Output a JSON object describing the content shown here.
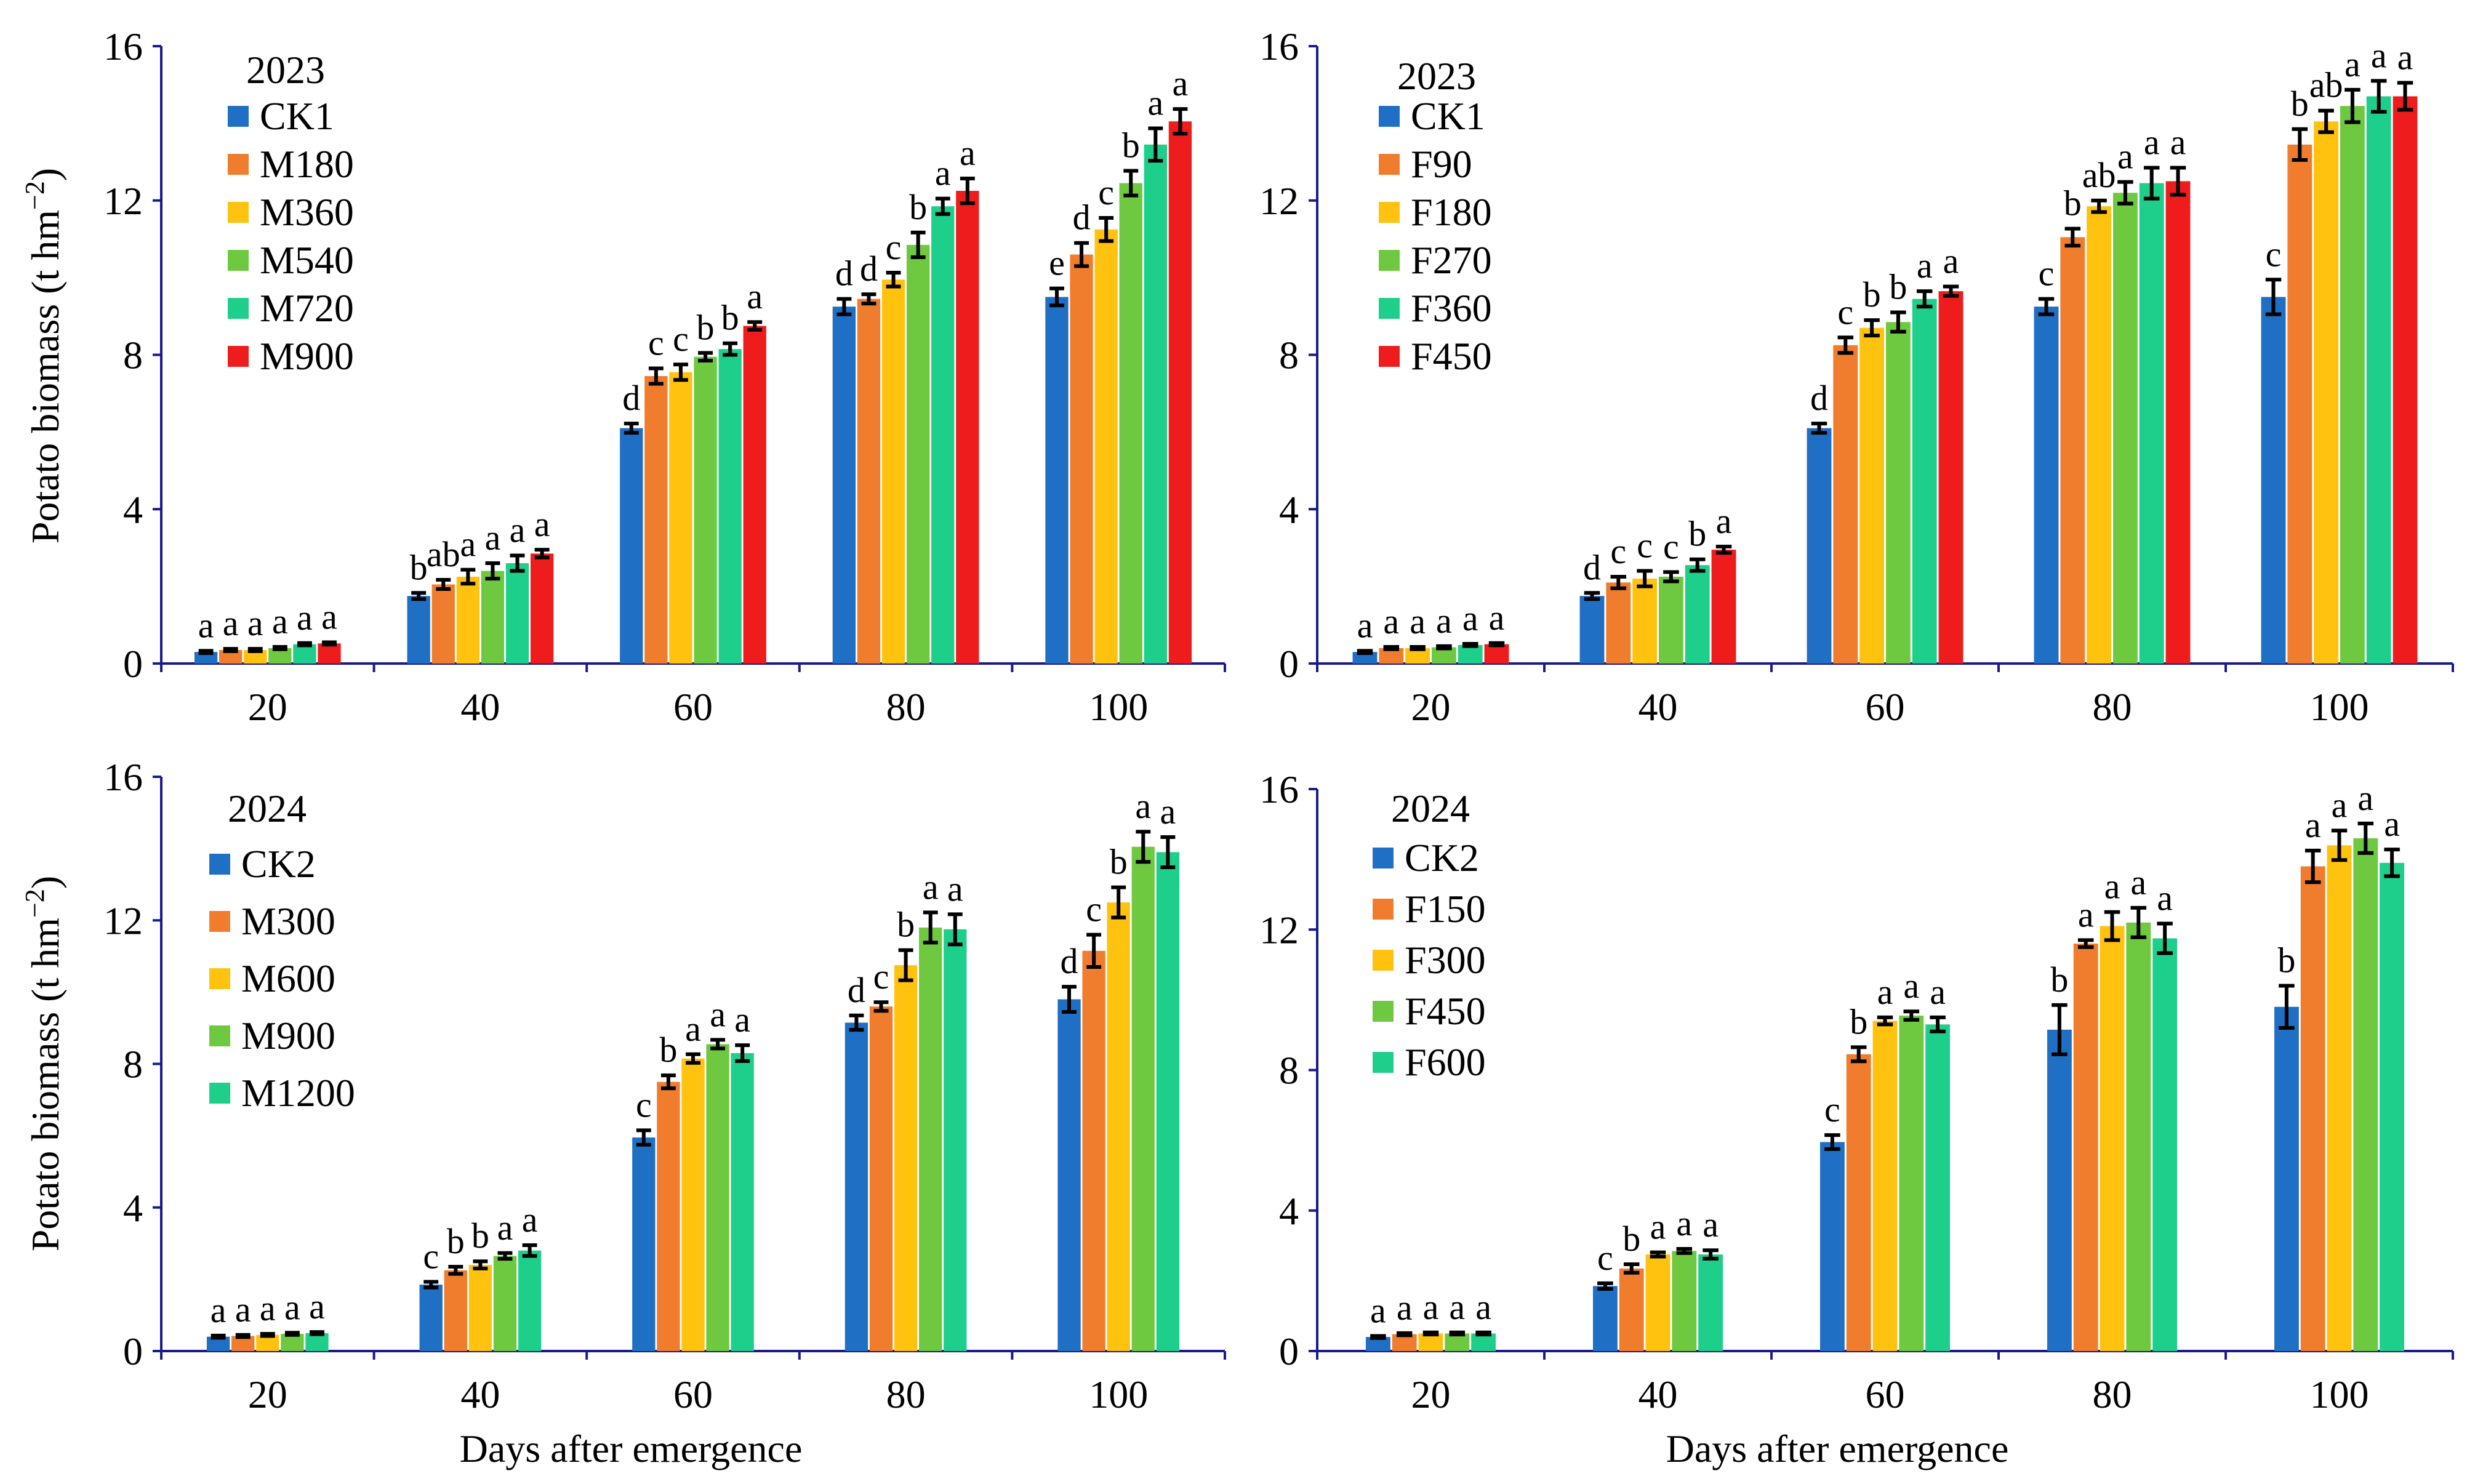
{
  "colors": {
    "CK": "#1f6fc4",
    "s1": "#f07d2e",
    "s2": "#ffc20e",
    "s3": "#6fc940",
    "s4": "#1ecf8c",
    "s5": "#ee1c1c"
  },
  "x_title": "Days after emergence",
  "chart_data": [
    {
      "type": "bar",
      "year": "2023",
      "ylabel": "Potato biomass (t hm",
      "ylabel_sup": "−2",
      "ylabel_close": ")",
      "ylim": [
        0,
        16
      ],
      "yticks": [
        "0",
        "4",
        "8",
        "12",
        "16"
      ],
      "categories": [
        "20",
        "40",
        "60",
        "80",
        "100"
      ],
      "series": [
        {
          "name": "CK1",
          "color_key": "CK",
          "values": [
            0.3,
            1.75,
            6.1,
            9.25,
            9.5
          ],
          "errors": [
            0.03,
            0.08,
            0.12,
            0.2,
            0.22
          ],
          "letters": [
            "a",
            "b",
            "d",
            "d",
            "e"
          ]
        },
        {
          "name": "M180",
          "color_key": "s1",
          "values": [
            0.35,
            2.05,
            7.45,
            9.45,
            10.6
          ],
          "errors": [
            0.03,
            0.12,
            0.2,
            0.12,
            0.3
          ],
          "letters": [
            "a",
            "ab",
            "c",
            "d",
            "d"
          ]
        },
        {
          "name": "M360",
          "color_key": "s2",
          "values": [
            0.35,
            2.25,
            7.55,
            9.95,
            11.25
          ],
          "errors": [
            0.03,
            0.18,
            0.2,
            0.18,
            0.3
          ],
          "letters": [
            "a",
            "a",
            "c",
            "c",
            "c"
          ]
        },
        {
          "name": "M540",
          "color_key": "s3",
          "values": [
            0.4,
            2.4,
            7.95,
            10.85,
            12.45
          ],
          "errors": [
            0.03,
            0.2,
            0.1,
            0.32,
            0.32
          ],
          "letters": [
            "a",
            "a",
            "b",
            "b",
            "b"
          ]
        },
        {
          "name": "M720",
          "color_key": "s4",
          "values": [
            0.5,
            2.6,
            8.15,
            11.85,
            13.45
          ],
          "errors": [
            0.03,
            0.2,
            0.15,
            0.2,
            0.42
          ],
          "letters": [
            "a",
            "a",
            "b",
            "a",
            "a"
          ]
        },
        {
          "name": "M900",
          "color_key": "s5",
          "values": [
            0.52,
            2.85,
            8.75,
            12.25,
            14.05
          ],
          "errors": [
            0.03,
            0.1,
            0.1,
            0.32,
            0.32
          ],
          "letters": [
            "a",
            "a",
            "a",
            "a",
            "a"
          ]
        }
      ]
    },
    {
      "type": "bar",
      "year": "2023",
      "ylabel": "",
      "ylabel_sup": "",
      "ylabel_close": "",
      "ylim": [
        0,
        16
      ],
      "yticks": [
        "0",
        "4",
        "8",
        "12",
        "16"
      ],
      "categories": [
        "20",
        "40",
        "60",
        "80",
        "100"
      ],
      "series": [
        {
          "name": "CK1",
          "color_key": "CK",
          "values": [
            0.3,
            1.75,
            6.1,
            9.25,
            9.5
          ],
          "errors": [
            0.03,
            0.08,
            0.12,
            0.2,
            0.45
          ],
          "letters": [
            "a",
            "d",
            "d",
            "c",
            "c"
          ]
        },
        {
          "name": "F90",
          "color_key": "s1",
          "values": [
            0.4,
            2.1,
            8.25,
            11.05,
            13.45
          ],
          "errors": [
            0.03,
            0.15,
            0.2,
            0.22,
            0.4
          ],
          "letters": [
            "a",
            "c",
            "c",
            "b",
            "b"
          ]
        },
        {
          "name": "F180",
          "color_key": "s2",
          "values": [
            0.4,
            2.2,
            8.7,
            11.85,
            14.05
          ],
          "errors": [
            0.03,
            0.2,
            0.2,
            0.15,
            0.28
          ],
          "letters": [
            "a",
            "c",
            "b",
            "ab",
            "ab"
          ]
        },
        {
          "name": "F270",
          "color_key": "s3",
          "values": [
            0.42,
            2.25,
            8.85,
            12.2,
            14.45
          ],
          "errors": [
            0.03,
            0.12,
            0.25,
            0.28,
            0.42
          ],
          "letters": [
            "a",
            "c",
            "b",
            "a",
            "a"
          ]
        },
        {
          "name": "F360",
          "color_key": "s4",
          "values": [
            0.48,
            2.55,
            9.45,
            12.45,
            14.7
          ],
          "errors": [
            0.03,
            0.15,
            0.2,
            0.4,
            0.4
          ],
          "letters": [
            "a",
            "b",
            "a",
            "a",
            "a"
          ]
        },
        {
          "name": "F450",
          "color_key": "s5",
          "values": [
            0.5,
            2.95,
            9.65,
            12.5,
            14.7
          ],
          "errors": [
            0.03,
            0.08,
            0.12,
            0.35,
            0.35
          ],
          "letters": [
            "a",
            "a",
            "a",
            "a",
            "a"
          ]
        }
      ]
    },
    {
      "type": "bar",
      "year": "2024",
      "ylabel": "Potato biomass (t hm",
      "ylabel_sup": "−2",
      "ylabel_close": ")",
      "ylim": [
        0,
        16
      ],
      "yticks": [
        "0",
        "4",
        "8",
        "12",
        "16"
      ],
      "categories": [
        "20",
        "40",
        "60",
        "80",
        "100"
      ],
      "series": [
        {
          "name": "CK2",
          "color_key": "CK",
          "values": [
            0.4,
            1.85,
            5.95,
            9.15,
            9.8
          ],
          "errors": [
            0.03,
            0.08,
            0.2,
            0.2,
            0.35
          ],
          "letters": [
            "a",
            "c",
            "c",
            "d",
            "d"
          ]
        },
        {
          "name": "M300",
          "color_key": "s1",
          "values": [
            0.42,
            2.25,
            7.5,
            9.6,
            11.15
          ],
          "errors": [
            0.03,
            0.1,
            0.18,
            0.12,
            0.45
          ],
          "letters": [
            "a",
            "b",
            "b",
            "c",
            "c"
          ]
        },
        {
          "name": "M600",
          "color_key": "s2",
          "values": [
            0.45,
            2.4,
            8.15,
            10.75,
            12.5
          ],
          "errors": [
            0.03,
            0.1,
            0.12,
            0.42,
            0.42
          ],
          "letters": [
            "a",
            "b",
            "a",
            "b",
            "b"
          ]
        },
        {
          "name": "M900",
          "color_key": "s3",
          "values": [
            0.48,
            2.65,
            8.55,
            11.8,
            14.05
          ],
          "errors": [
            0.03,
            0.08,
            0.12,
            0.42,
            0.42
          ],
          "letters": [
            "a",
            "a",
            "a",
            "a",
            "a"
          ]
        },
        {
          "name": "M1200",
          "color_key": "s4",
          "values": [
            0.5,
            2.8,
            8.3,
            11.75,
            13.9
          ],
          "errors": [
            0.03,
            0.15,
            0.22,
            0.42,
            0.42
          ],
          "letters": [
            "a",
            "a",
            "a",
            "a",
            "a"
          ]
        }
      ]
    },
    {
      "type": "bar",
      "year": "2024",
      "ylabel": "",
      "ylabel_sup": "",
      "ylabel_close": "",
      "ylim": [
        0,
        16
      ],
      "yticks": [
        "0",
        "4",
        "8",
        "12",
        "16"
      ],
      "categories": [
        "20",
        "40",
        "60",
        "80",
        "100"
      ],
      "series": [
        {
          "name": "CK2",
          "color_key": "CK",
          "values": [
            0.4,
            1.85,
            5.95,
            9.15,
            9.8
          ],
          "errors": [
            0.03,
            0.08,
            0.2,
            0.7,
            0.6
          ],
          "letters": [
            "a",
            "c",
            "c",
            "b",
            "b"
          ]
        },
        {
          "name": "F150",
          "color_key": "s1",
          "values": [
            0.48,
            2.35,
            8.45,
            11.6,
            13.8
          ],
          "errors": [
            0.03,
            0.12,
            0.2,
            0.1,
            0.45
          ],
          "letters": [
            "a",
            "b",
            "b",
            "a",
            "a"
          ]
        },
        {
          "name": "F300",
          "color_key": "s2",
          "values": [
            0.5,
            2.75,
            9.4,
            12.1,
            14.4
          ],
          "errors": [
            0.03,
            0.06,
            0.1,
            0.4,
            0.42
          ],
          "letters": [
            "a",
            "a",
            "a",
            "a",
            "a"
          ]
        },
        {
          "name": "F450",
          "color_key": "s3",
          "values": [
            0.5,
            2.85,
            9.55,
            12.2,
            14.6
          ],
          "errors": [
            0.03,
            0.06,
            0.12,
            0.42,
            0.42
          ],
          "letters": [
            "a",
            "a",
            "a",
            "a",
            "a"
          ]
        },
        {
          "name": "F600",
          "color_key": "s4",
          "values": [
            0.5,
            2.75,
            9.3,
            11.75,
            13.9
          ],
          "errors": [
            0.03,
            0.12,
            0.2,
            0.42,
            0.38
          ],
          "letters": [
            "a",
            "a",
            "a",
            "a",
            "a"
          ]
        }
      ]
    }
  ]
}
